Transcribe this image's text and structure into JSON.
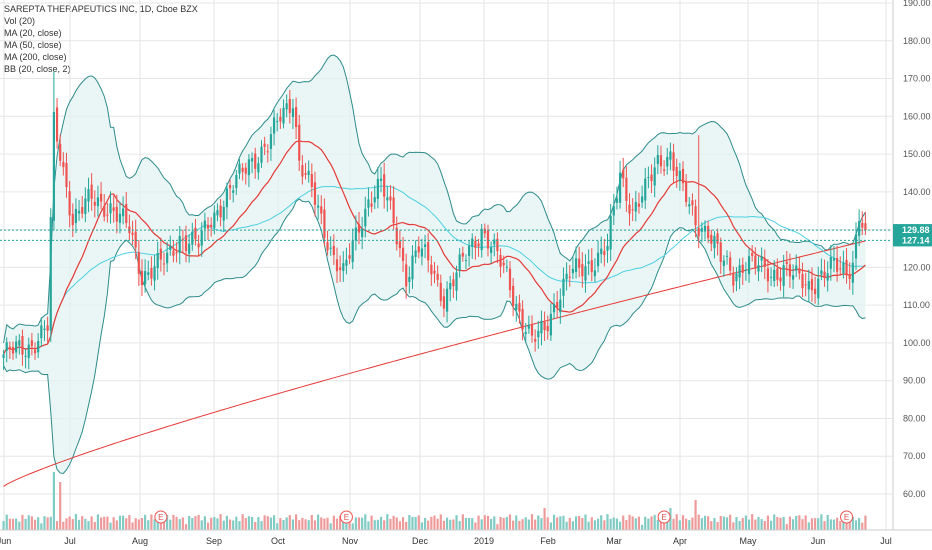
{
  "legend": {
    "title": "SAREPTA THERAPEUTICS INC, 1D, Cboe BZX",
    "items": [
      "Vol (20)",
      "MA (20, close)",
      "MA (50, close)",
      "MA (200, close)",
      "BB (20, close, 2)"
    ]
  },
  "colors": {
    "up": "#26a69a",
    "down": "#ef5350",
    "ma20": "#e53935",
    "ma50": "#4dd0e1",
    "ma200": "#e53935",
    "bb_band": "#2e8b8b",
    "bb_fill": "#e0f2f1",
    "vol_up": "#80cbc4",
    "vol_down": "#ef9a9a",
    "price_tag": "#26a69a",
    "price_tag2": "#1e88e5",
    "grid": "#e6e6e6"
  },
  "chart_data": {
    "type": "candlestick",
    "ylim": [
      50,
      190
    ],
    "yticks": [
      60,
      70,
      80,
      90,
      100,
      110,
      120,
      130,
      140,
      150,
      160,
      170,
      180,
      190
    ],
    "ytick_labels": [
      "60.00",
      "70.00",
      "80.00",
      "90.00",
      "100.00",
      "110.00",
      "120.00",
      "130.00",
      "140.00",
      "150.00",
      "160.00",
      "170.00",
      "180.00",
      "190.00"
    ],
    "x_labels": [
      "Jun",
      "Jul",
      "Aug",
      "Sep",
      "Oct",
      "Nov",
      "Dec",
      "2019",
      "Feb",
      "Mar",
      "Apr",
      "May",
      "Jun",
      "Jul"
    ],
    "last_price": "129.88",
    "ref_price": "127.14",
    "earnings_marker": "E",
    "price_anchors": [
      [
        0,
        97
      ],
      [
        8,
        99
      ],
      [
        14,
        104
      ],
      [
        16,
        158
      ],
      [
        18,
        150
      ],
      [
        22,
        133
      ],
      [
        28,
        138
      ],
      [
        34,
        136
      ],
      [
        40,
        130
      ],
      [
        44,
        118
      ],
      [
        48,
        120
      ],
      [
        52,
        122
      ],
      [
        56,
        128
      ],
      [
        62,
        126
      ],
      [
        66,
        133
      ],
      [
        72,
        140
      ],
      [
        78,
        148
      ],
      [
        84,
        152
      ],
      [
        88,
        160
      ],
      [
        92,
        165
      ],
      [
        94,
        148
      ],
      [
        98,
        140
      ],
      [
        104,
        125
      ],
      [
        108,
        118
      ],
      [
        112,
        128
      ],
      [
        116,
        138
      ],
      [
        120,
        142
      ],
      [
        124,
        132
      ],
      [
        128,
        118
      ],
      [
        132,
        125
      ],
      [
        136,
        120
      ],
      [
        140,
        112
      ],
      [
        144,
        118
      ],
      [
        148,
        125
      ],
      [
        152,
        130
      ],
      [
        156,
        124
      ],
      [
        160,
        118
      ],
      [
        164,
        108
      ],
      [
        168,
        100
      ],
      [
        172,
        104
      ],
      [
        176,
        112
      ],
      [
        180,
        118
      ],
      [
        184,
        120
      ],
      [
        188,
        122
      ],
      [
        192,
        125
      ],
      [
        196,
        145
      ],
      [
        200,
        135
      ],
      [
        204,
        140
      ],
      [
        208,
        148
      ],
      [
        212,
        150
      ],
      [
        216,
        140
      ],
      [
        220,
        132
      ],
      [
        224,
        130
      ],
      [
        228,
        122
      ],
      [
        232,
        118
      ],
      [
        236,
        122
      ],
      [
        240,
        120
      ],
      [
        244,
        118
      ],
      [
        248,
        120
      ],
      [
        252,
        117
      ],
      [
        256,
        115
      ],
      [
        260,
        118
      ],
      [
        264,
        120
      ],
      [
        268,
        119
      ],
      [
        270,
        122
      ],
      [
        272,
        134
      ],
      [
        274,
        129.88
      ]
    ],
    "volume_spikes": [
      [
        16,
        58
      ],
      [
        18,
        48
      ],
      [
        172,
        22
      ],
      [
        212,
        22
      ],
      [
        220,
        30
      ]
    ],
    "earnings_indices": [
      50,
      109,
      210,
      268
    ]
  }
}
